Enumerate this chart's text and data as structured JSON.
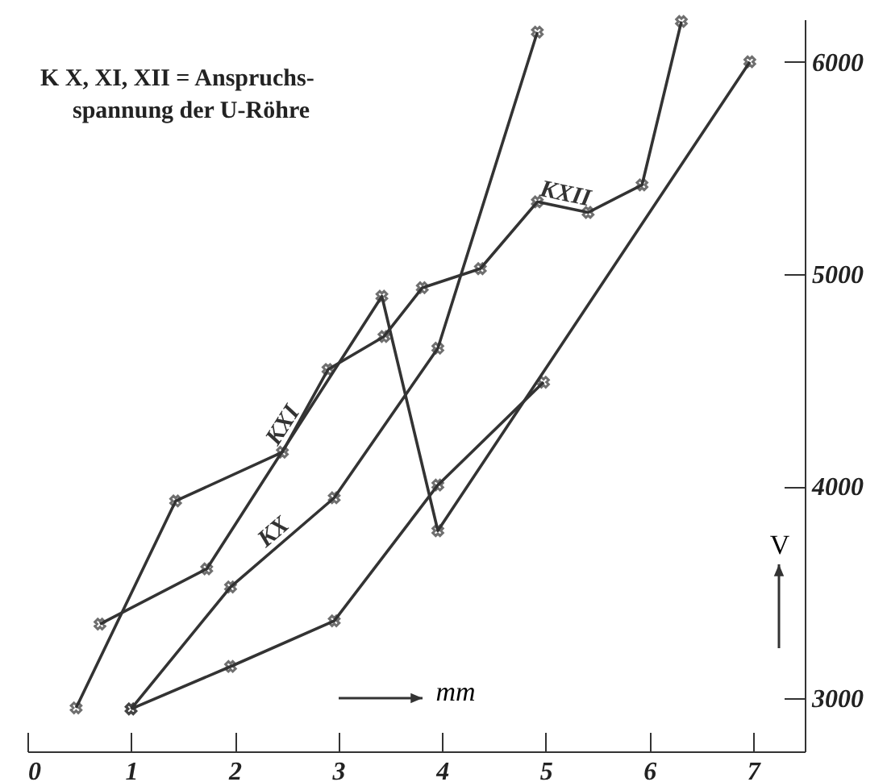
{
  "chart_data": {
    "type": "line",
    "annotations": [
      "K X, XI, XII = Anspruchs-",
      "spannung der U-Röhre"
    ],
    "xlabel": "mm",
    "ylabel": "V",
    "xlim": [
      0,
      7.5
    ],
    "ylim": [
      2750,
      6200
    ],
    "xticks": [
      0,
      1,
      2,
      3,
      4,
      5,
      6,
      7
    ],
    "yticks": [
      3000,
      4000,
      5000,
      6000
    ],
    "marker": "cross",
    "line_style": "solid",
    "series": [
      {
        "name": "KX",
        "color": "#333333",
        "x": [
          1,
          1.96,
          2.96,
          3.96,
          4.92
        ],
        "values": [
          2950,
          3525,
          3945,
          4650,
          6140
        ]
      },
      {
        "name": "KXI",
        "color": "#333333",
        "x": [
          0.7,
          1.73,
          3.42,
          3.96,
          6.97
        ],
        "values": [
          3350,
          3610,
          4895,
          3790,
          6000
        ]
      },
      {
        "name": "KXII",
        "color": "#333333",
        "x": [
          0.47,
          1.43,
          2.46,
          2.9,
          3.44,
          3.81,
          4.37,
          4.92,
          5.41,
          5.93,
          6.31
        ],
        "values": [
          2955,
          3930,
          4160,
          4550,
          4705,
          4935,
          5025,
          5340,
          5290,
          5420,
          6190
        ]
      },
      {
        "color": "#333333",
        "x": [
          1,
          1.96,
          2.96,
          3.96,
          4.98
        ],
        "values": [
          2950,
          3150,
          3365,
          4005,
          4490
        ]
      }
    ]
  }
}
